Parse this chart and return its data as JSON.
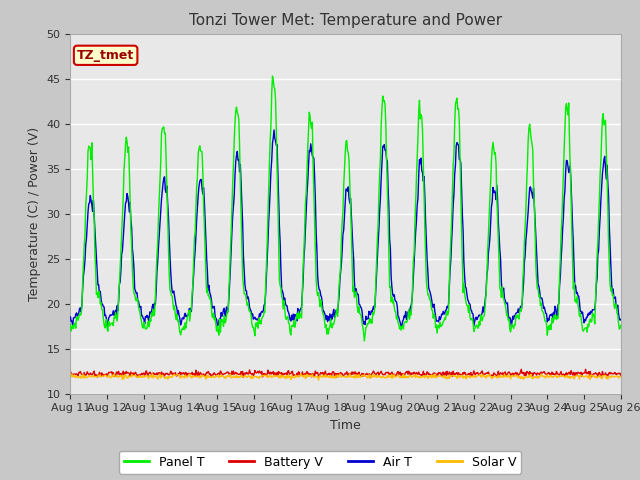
{
  "title": "Tonzi Tower Met: Temperature and Power",
  "xlabel": "Time",
  "ylabel": "Temperature (C) / Power (V)",
  "ylim": [
    10,
    50
  ],
  "xtick_labels": [
    "Aug 11",
    "Aug 12",
    "Aug 13",
    "Aug 14",
    "Aug 15",
    "Aug 16",
    "Aug 17",
    "Aug 18",
    "Aug 19",
    "Aug 20",
    "Aug 21",
    "Aug 22",
    "Aug 23",
    "Aug 24",
    "Aug 25",
    "Aug 26"
  ],
  "legend_labels": [
    "Panel T",
    "Battery V",
    "Air T",
    "Solar V"
  ],
  "legend_colors": [
    "#00ee00",
    "#dd0000",
    "#0000cc",
    "#ffbb00"
  ],
  "panel_color": "#00ee00",
  "battery_color": "#dd0000",
  "air_color": "#0000cc",
  "solar_color": "#ffbb00",
  "annotation_text": "TZ_tmet",
  "annotation_bg": "#ffffcc",
  "annotation_border": "#cc0000",
  "fig_bg": "#c8c8c8",
  "plot_bg": "#e8e8e8",
  "title_fontsize": 11,
  "axis_fontsize": 9,
  "tick_fontsize": 8
}
